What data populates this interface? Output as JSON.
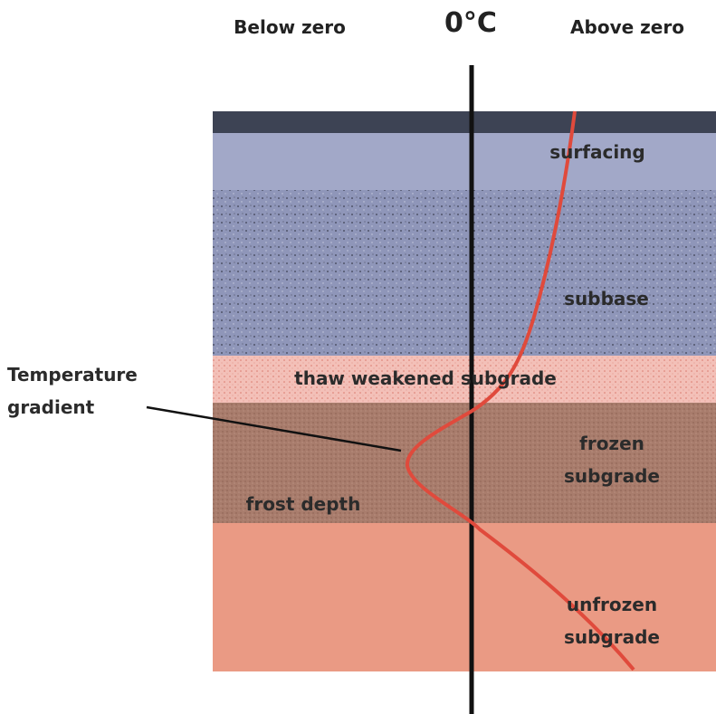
{
  "header": {
    "below": "Below zero",
    "zero": "0°C",
    "above": "Above zero"
  },
  "layers": [
    {
      "label": "surfacing"
    },
    {
      "label": "subbase"
    },
    {
      "label": "thaw weakened subgrade"
    },
    {
      "label": "frozen subgrade"
    },
    {
      "label": "unfrozen subgrade"
    }
  ],
  "annotations": {
    "frost_depth": "frost depth",
    "temperature_gradient": "Temperature gradient"
  }
}
